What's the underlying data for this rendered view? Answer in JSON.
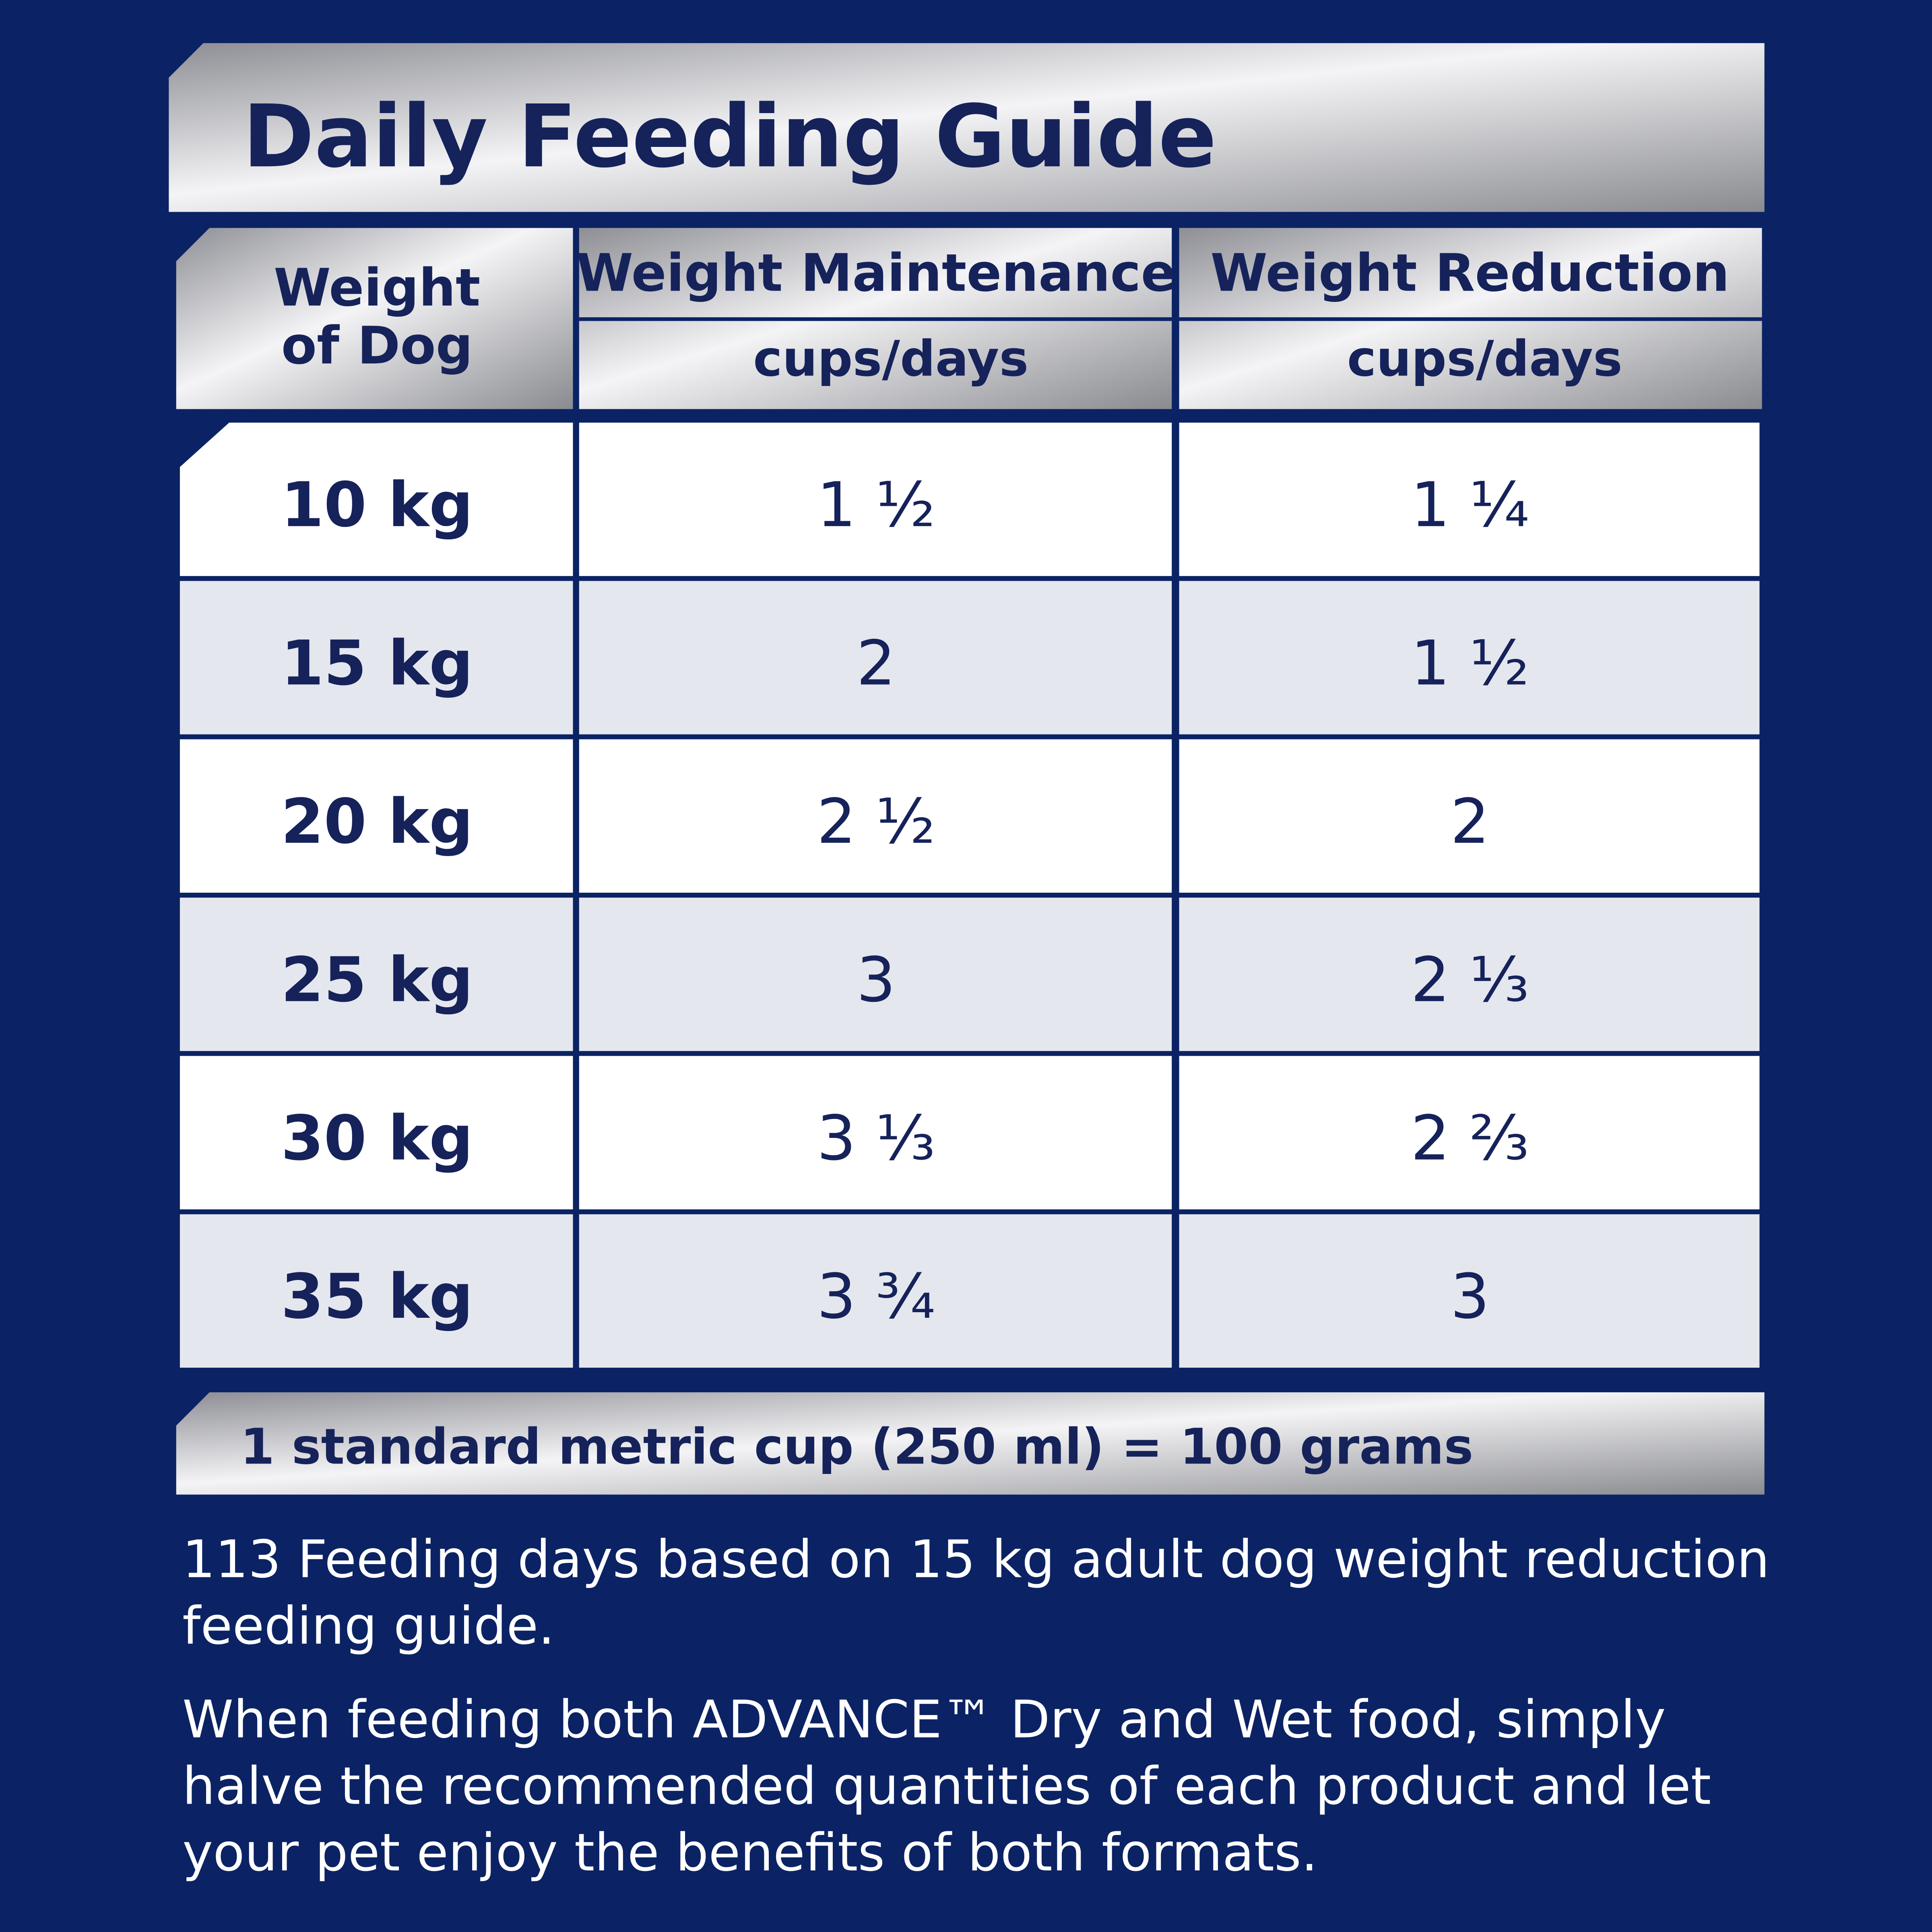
{
  "title": "Daily Feeding Guide",
  "table": {
    "header": {
      "first": [
        "Weight",
        "of Dog"
      ],
      "columns": [
        {
          "name": "Weight Maintenance",
          "unit": "cups/days"
        },
        {
          "name": "Weight Reduction",
          "unit": "cups/days"
        }
      ]
    },
    "rows": [
      [
        "10 kg",
        "1 ½",
        "1 ¼"
      ],
      [
        "15 kg",
        "2",
        "1 ½"
      ],
      [
        "20 kg",
        "2 ½",
        "2"
      ],
      [
        "25 kg",
        "3",
        "2 ⅓"
      ],
      [
        "30 kg",
        "3 ⅓",
        "2 ⅔"
      ],
      [
        "35 kg",
        "3 ¾",
        "3"
      ]
    ]
  },
  "footnote": "1 standard metric cup (250 ml) = 100 grams",
  "paragraphs": [
    [
      "113 Feeding days based on 15 kg adult dog weight reduction",
      "feeding guide."
    ],
    [
      "When feeding both ADVANCE™ Dry and Wet food, simply",
      "halve the recommended quantities of each product and let",
      "your pet enjoy the benefits of both formats."
    ]
  ]
}
